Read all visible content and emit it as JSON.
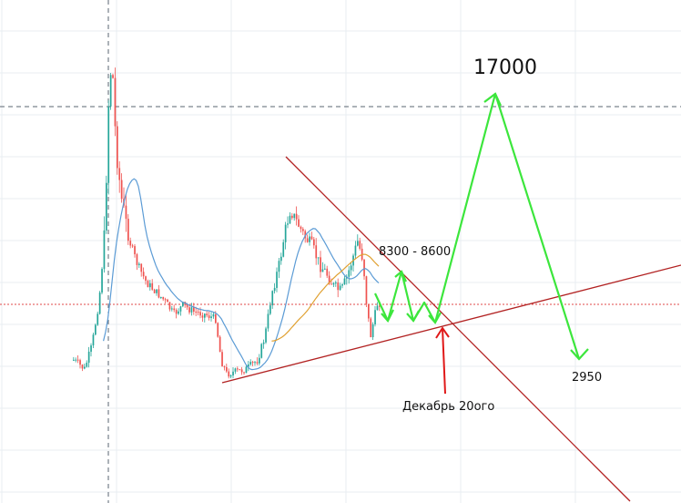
{
  "chart_data": {
    "type": "candlestick",
    "colors": {
      "up": "#26a69a",
      "down": "#ef5350",
      "ma_fast": "#e0a030",
      "ma_slow": "#5b9bd5",
      "trendline": "#b22222",
      "forecast": "#3ce63c",
      "arrow": "#e01818",
      "grid": "#e8eef2",
      "price_line": "#e04848",
      "crosshair": "#8a94a0"
    },
    "annotations": {
      "target_high": "17000",
      "range": "8300 - 8600",
      "target_low": "2950",
      "date_label": "Декабрь 20ого"
    },
    "forecast_path": [
      8400,
      7300,
      8500,
      7200,
      7600,
      7200,
      17000,
      3000
    ]
  }
}
